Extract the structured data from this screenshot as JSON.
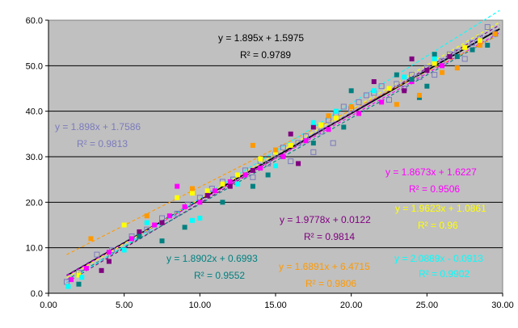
{
  "chart_data": {
    "type": "scatter",
    "title": "",
    "xlabel": "",
    "ylabel": "",
    "xlim": [
      0,
      30
    ],
    "ylim": [
      0,
      60
    ],
    "x_ticks": [
      "0.00",
      "5.00",
      "10.00",
      "15.00",
      "20.00",
      "25.00",
      "30.00"
    ],
    "y_ticks": [
      "0.0",
      "10.0",
      "20.0",
      "30.0",
      "40.0",
      "50.0",
      "60.0"
    ],
    "grid": "horizontal",
    "plot_background": "#c0c0c0",
    "legend": "none",
    "series": [
      {
        "color": "#7b7bbd",
        "marker": "open-square",
        "trend": [
          1.898,
          1.7586
        ],
        "trend_style": "dashed",
        "points": [
          [
            1.2,
            2.5
          ],
          [
            2.0,
            4.5
          ],
          [
            3.2,
            8.5
          ],
          [
            4.2,
            9.5
          ],
          [
            5.5,
            12.5
          ],
          [
            6.5,
            14.0
          ],
          [
            7.5,
            16.5
          ],
          [
            8.5,
            17.5
          ],
          [
            9.2,
            19.5
          ],
          [
            10.0,
            21.0
          ],
          [
            10.8,
            23.0
          ],
          [
            11.5,
            24.5
          ],
          [
            12.2,
            25.0
          ],
          [
            13.0,
            27.0
          ],
          [
            14.0,
            29.0
          ],
          [
            14.5,
            28.5
          ],
          [
            15.0,
            30.5
          ],
          [
            15.5,
            32.0
          ],
          [
            16.5,
            33.0
          ],
          [
            17.0,
            34.5
          ],
          [
            17.5,
            31.0
          ],
          [
            18.0,
            35.5
          ],
          [
            18.5,
            38.0
          ],
          [
            19.0,
            39.5
          ],
          [
            19.5,
            41.0
          ],
          [
            20.0,
            40.5
          ],
          [
            20.5,
            42.0
          ],
          [
            21.0,
            43.5
          ],
          [
            21.5,
            44.0
          ],
          [
            22.0,
            45.5
          ],
          [
            22.5,
            42.5
          ],
          [
            23.0,
            46.0
          ],
          [
            23.5,
            45.0
          ],
          [
            24.0,
            48.0
          ],
          [
            24.5,
            47.5
          ],
          [
            25.0,
            49.5
          ],
          [
            25.5,
            48.0
          ],
          [
            26.0,
            51.0
          ],
          [
            26.5,
            52.5
          ],
          [
            27.0,
            53.0
          ],
          [
            27.5,
            51.5
          ],
          [
            28.0,
            55.0
          ],
          [
            28.5,
            56.0
          ],
          [
            29.0,
            58.5
          ],
          [
            29.5,
            57.0
          ],
          [
            18.8,
            33.0
          ],
          [
            13.5,
            25.5
          ],
          [
            16.0,
            29.0
          ]
        ]
      },
      {
        "color": "#000000",
        "marker": "none",
        "trend": [
          1.895,
          1.5975
        ],
        "trend_style": "solid",
        "label_eq": "y = 1.895x + 1.5975",
        "label_r2": "R² = 0.9789"
      },
      {
        "color": "#ff00ff",
        "marker": "square",
        "trend": [
          1.8673,
          1.6227
        ],
        "trend_style": "dashed",
        "points": [
          [
            1.5,
            3.0
          ],
          [
            2.5,
            5.5
          ],
          [
            4.0,
            9.0
          ],
          [
            5.5,
            12.0
          ],
          [
            7.0,
            15.0
          ],
          [
            8.0,
            17.0
          ],
          [
            8.5,
            23.5
          ],
          [
            9.0,
            19.0
          ],
          [
            10.0,
            20.0
          ],
          [
            11.0,
            22.5
          ],
          [
            12.0,
            24.5
          ],
          [
            13.0,
            26.0
          ],
          [
            14.0,
            27.5
          ],
          [
            15.5,
            30.0
          ],
          [
            17.0,
            33.5
          ],
          [
            18.5,
            36.0
          ],
          [
            20.5,
            39.5
          ],
          [
            22.0,
            42.0
          ],
          [
            24.0,
            46.5
          ],
          [
            26.0,
            50.0
          ]
        ]
      },
      {
        "color": "#ffff00",
        "marker": "square",
        "trend": [
          1.9623,
          1.0861
        ],
        "trend_style": "dashed",
        "points": [
          [
            2.0,
            4.0
          ],
          [
            5.0,
            15.0
          ],
          [
            8.5,
            21.0
          ],
          [
            9.5,
            22.0
          ],
          [
            10.5,
            22.5
          ],
          [
            11.5,
            24.0
          ],
          [
            12.5,
            26.0
          ],
          [
            14.0,
            29.5
          ],
          [
            15.0,
            31.0
          ],
          [
            16.0,
            32.5
          ],
          [
            18.0,
            37.0
          ],
          [
            19.0,
            38.5
          ],
          [
            22.5,
            45.0
          ],
          [
            25.5,
            50.5
          ],
          [
            27.5,
            54.0
          ],
          [
            28.5,
            55.5
          ]
        ]
      },
      {
        "color": "#800080",
        "marker": "square",
        "trend": [
          1.9778,
          0.0122
        ],
        "trend_style": "dashed",
        "points": [
          [
            3.5,
            5.0
          ],
          [
            4.0,
            7.0
          ],
          [
            6.0,
            13.5
          ],
          [
            7.5,
            15.5
          ],
          [
            10.5,
            21.5
          ],
          [
            12.0,
            23.5
          ],
          [
            13.5,
            27.0
          ],
          [
            16.5,
            28.5
          ],
          [
            16.0,
            35.0
          ],
          [
            17.5,
            36.5
          ],
          [
            21.5,
            46.5
          ],
          [
            23.5,
            44.5
          ],
          [
            24.0,
            51.5
          ],
          [
            25.0,
            49.0
          ],
          [
            26.5,
            52.0
          ]
        ]
      },
      {
        "color": "#008080",
        "marker": "square",
        "trend": [
          1.8902,
          0.6993
        ],
        "trend_style": "dashed",
        "points": [
          [
            2.0,
            2.0
          ],
          [
            6.0,
            12.5
          ],
          [
            7.5,
            11.5
          ],
          [
            9.0,
            14.5
          ],
          [
            11.5,
            20.0
          ],
          [
            13.5,
            23.5
          ],
          [
            14.5,
            26.0
          ],
          [
            17.5,
            33.0
          ],
          [
            19.5,
            36.5
          ],
          [
            20.0,
            44.5
          ],
          [
            23.0,
            48.0
          ],
          [
            24.0,
            47.0
          ],
          [
            24.5,
            43.0
          ],
          [
            25.0,
            45.5
          ],
          [
            25.5,
            52.5
          ],
          [
            27.0,
            52.0
          ],
          [
            28.0,
            53.5
          ],
          [
            29.0,
            54.5
          ]
        ]
      },
      {
        "color": "#ff9900",
        "marker": "square",
        "trend": [
          1.6891,
          6.4715
        ],
        "trend_style": "dashed",
        "points": [
          [
            2.8,
            12.0
          ],
          [
            6.5,
            17.0
          ],
          [
            9.5,
            23.0
          ],
          [
            13.5,
            32.5
          ],
          [
            15.0,
            31.5
          ],
          [
            18.5,
            39.0
          ],
          [
            20.0,
            41.0
          ],
          [
            23.0,
            41.5
          ],
          [
            24.5,
            43.5
          ],
          [
            26.0,
            48.5
          ],
          [
            27.0,
            49.5
          ],
          [
            28.5,
            54.5
          ],
          [
            29.5,
            57.0
          ]
        ]
      },
      {
        "color": "#00ffff",
        "marker": "square",
        "trend": [
          2.0889,
          -0.0913
        ],
        "trend_style": "dashed",
        "points": [
          [
            1.3,
            1.5
          ],
          [
            2.2,
            3.5
          ],
          [
            5.0,
            9.5
          ],
          [
            6.5,
            15.5
          ],
          [
            9.5,
            16.0
          ],
          [
            10.0,
            16.5
          ],
          [
            12.5,
            24.0
          ],
          [
            15.0,
            28.0
          ],
          [
            17.5,
            37.5
          ],
          [
            19.0,
            40.0
          ],
          [
            21.5,
            44.5
          ],
          [
            23.5,
            47.5
          ],
          [
            25.5,
            51.5
          ]
        ]
      }
    ],
    "annotations": [
      {
        "eq": "y = 1.895x + 1.5975",
        "r2": "R² = 0.9789",
        "color": "#000000"
      },
      {
        "eq": "y = 1.898x + 1.7586",
        "r2": "R² = 0.9813",
        "color": "#7b7bbd"
      },
      {
        "eq": "y = 1.8673x + 1.6227",
        "r2": "R² = 0.9506",
        "color": "#ff00ff"
      },
      {
        "eq": "y = 1.9623x + 1.0861",
        "r2": "R² = 0.96",
        "color": "#ffff00"
      },
      {
        "eq": "y = 1.9778x + 0.0122",
        "r2": "R² = 0.9814",
        "color": "#800080"
      },
      {
        "eq": "y = 1.8902x + 0.6993",
        "r2": "R² = 0.9552",
        "color": "#008080"
      },
      {
        "eq": "y = 1.6891x + 6.4715",
        "r2": "R² = 0.9806",
        "color": "#ff9900"
      },
      {
        "eq": "y = 2.0889x - 0.0913",
        "r2": "R² = 0.9902",
        "color": "#00ffff"
      }
    ]
  }
}
